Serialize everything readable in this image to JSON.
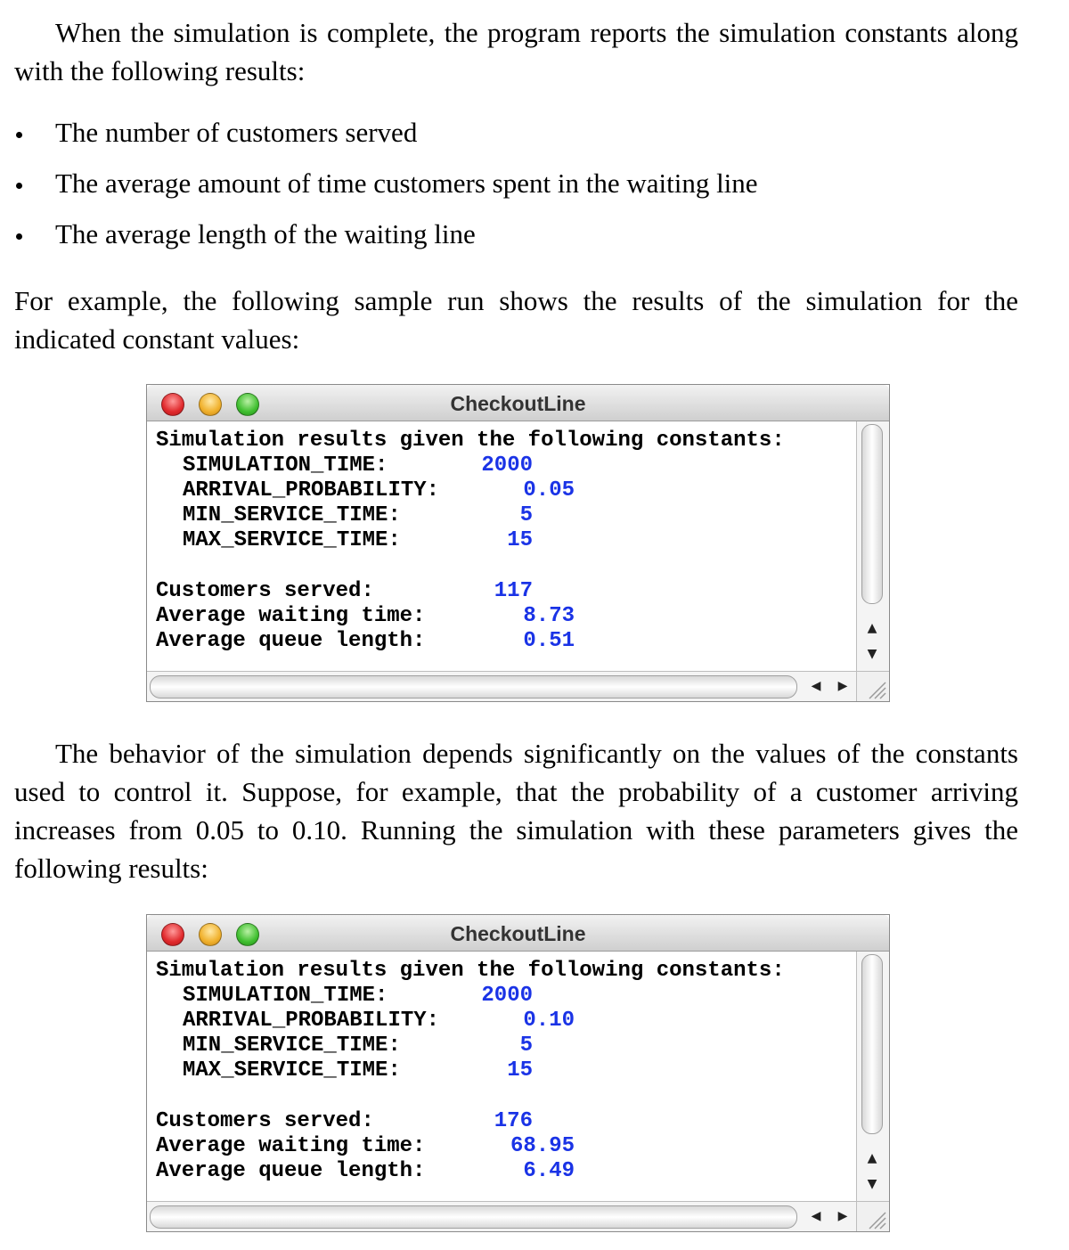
{
  "text": {
    "p1": "When the simulation is complete, the program reports the simulation constants along with the following results:",
    "bullets": [
      "The number of customers served",
      "The average amount of time customers spent in the waiting line",
      "The average length of the waiting line"
    ],
    "p2": "For example, the following sample run shows the results of the simulation for the indicated constant values:",
    "p3": "The behavior of the simulation depends significantly on the values of the constants used to control it.  Suppose, for example, that the probability of a customer arriving increases from 0.05 to 0.10.  Running the simulation with these parameters gives the following results:"
  },
  "labels": {
    "header": "Simulation results given the following constants:",
    "sim_time": "SIMULATION_TIME:",
    "arrival": "ARRIVAL_PROBABILITY:",
    "min_service": "MIN_SERVICE_TIME:",
    "max_service": "MAX_SERVICE_TIME:",
    "served": "Customers served:",
    "wait": "Average waiting time:",
    "queue": "Average queue length:"
  },
  "windows": [
    {
      "title": "CheckoutLine",
      "values": {
        "sim_time": "2000",
        "arrival": "0.05",
        "min_service": "5",
        "max_service": "15",
        "served": "117",
        "wait": "8.73",
        "queue": "0.51"
      }
    },
    {
      "title": "CheckoutLine",
      "values": {
        "sim_time": "2000",
        "arrival": "0.10",
        "min_service": "5",
        "max_service": "15",
        "served": "176",
        "wait": "68.95",
        "queue": "6.49"
      }
    }
  ],
  "colors": {
    "value_text": "#1a33e6"
  }
}
